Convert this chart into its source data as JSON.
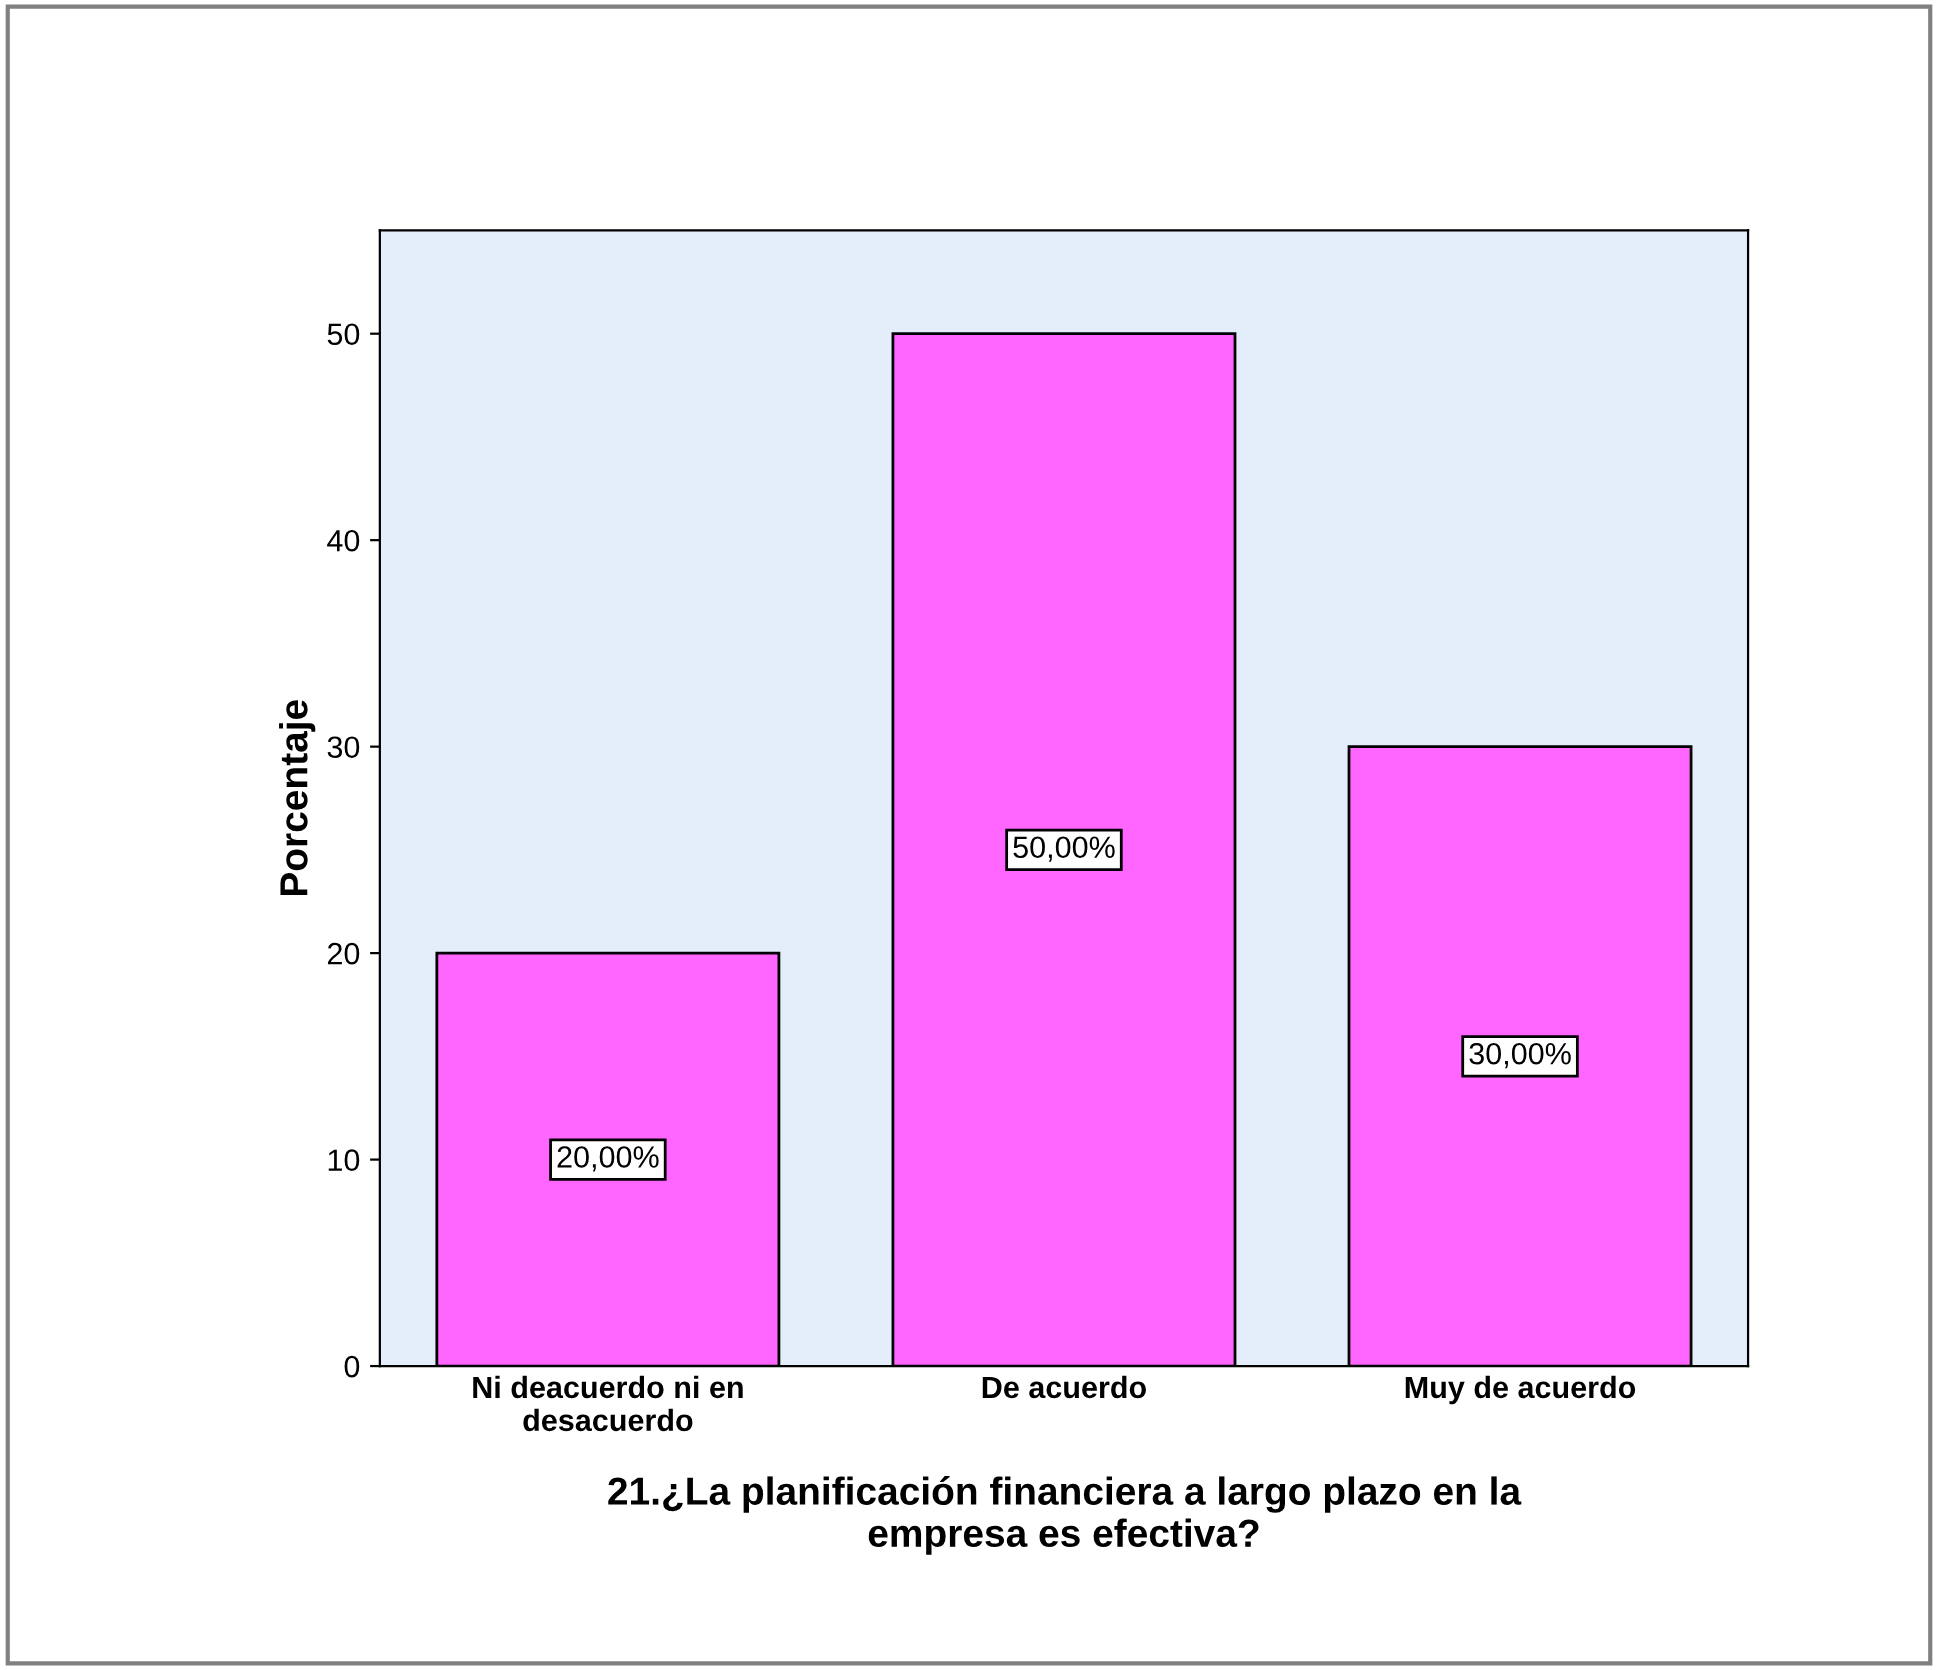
{
  "chart_data": {
    "type": "bar",
    "xlabel": "21.¿La planificación financiera a largo plazo en la\nempresa es efectiva?",
    "ylabel": "Porcentaje",
    "categories": [
      "Ni deacuerdo ni en\ndesacuerdo",
      "De acuerdo",
      "Muy de acuerdo"
    ],
    "values": [
      20,
      50,
      30
    ],
    "value_labels": [
      "20,00%",
      "50,00%",
      "30,00%"
    ],
    "color": "#ff66ff",
    "ylim": [
      0,
      55
    ],
    "yticks": [
      0,
      10,
      20,
      30,
      40,
      50
    ],
    "grid": false
  }
}
